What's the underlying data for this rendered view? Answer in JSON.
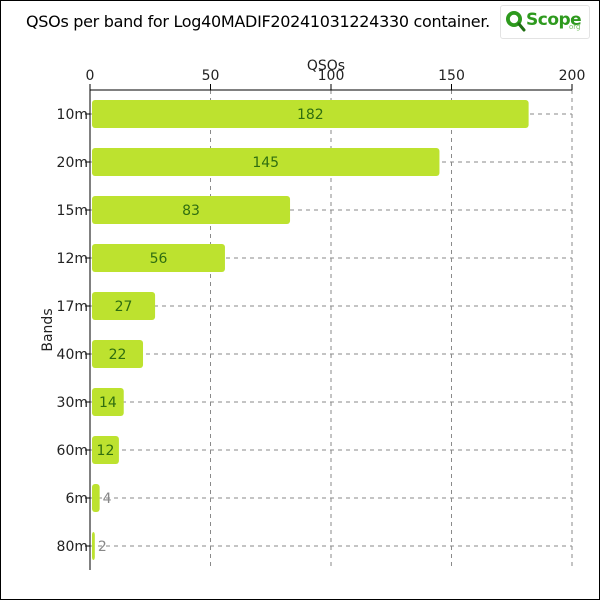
{
  "header": {
    "title": "QSOs per band for Log40MADIF20241031224330 container.",
    "logo_text": "Scope",
    "logo_suffix": "org",
    "logo_icon": "magnifier-q-icon"
  },
  "colors": {
    "bar": "#bde22f",
    "bar_label": "#2f6e10",
    "grid": "#8a8a8a",
    "logo_green": "#2e9a1e"
  },
  "chart_data": {
    "type": "bar",
    "orientation": "horizontal",
    "title": "QSOs per band for Log40MADIF20241031224330 container.",
    "xlabel": "QSOs",
    "ylabel": "Bands",
    "categories": [
      "10m",
      "20m",
      "15m",
      "12m",
      "17m",
      "40m",
      "30m",
      "60m",
      "6m",
      "80m"
    ],
    "values": [
      182,
      145,
      83,
      56,
      27,
      22,
      14,
      12,
      4,
      2
    ],
    "xlim": [
      0,
      200
    ],
    "xticks": [
      0,
      50,
      100,
      150,
      200
    ],
    "x_axis_position": "top",
    "grid": true,
    "legend": "none",
    "data_labels": true
  }
}
